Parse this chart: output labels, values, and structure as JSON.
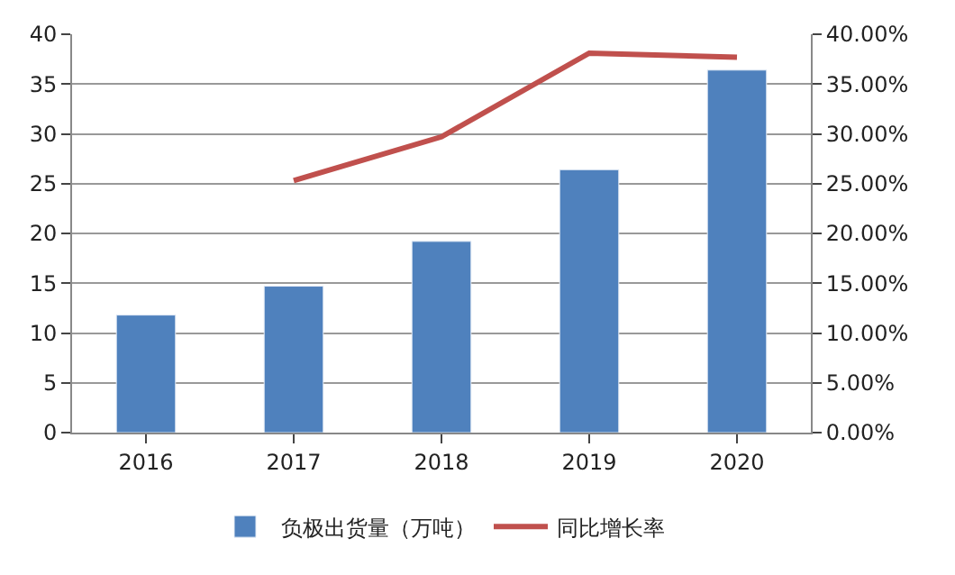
{
  "chart_data": {
    "type": "bar",
    "categories": [
      "2016",
      "2017",
      "2018",
      "2019",
      "2020"
    ],
    "series": [
      {
        "name": "负极出货量（万吨）",
        "color": "#4f81bd",
        "values": [
          11.8,
          14.7,
          19.2,
          26.4,
          36.4
        ]
      },
      {
        "name": "同比增长率",
        "type": "line",
        "axis": "y2",
        "color": "#c0504d",
        "values": [
          null,
          25.3,
          29.7,
          38.1,
          37.7
        ]
      }
    ],
    "ylim": [
      0,
      40
    ],
    "yticks": [
      0,
      5,
      10,
      15,
      20,
      25,
      30,
      35,
      40
    ],
    "y2lim": [
      0,
      40
    ],
    "y2ticks": [
      {
        "value": 0,
        "label": "0.00%"
      },
      {
        "value": 5,
        "label": "5.00%"
      },
      {
        "value": 10,
        "label": "10.00%"
      },
      {
        "value": 15,
        "label": "15.00%"
      },
      {
        "value": 20,
        "label": "20.00%"
      },
      {
        "value": 25,
        "label": "25.00%"
      },
      {
        "value": 30,
        "label": "30.00%"
      },
      {
        "value": 35,
        "label": "35.00%"
      },
      {
        "value": 40,
        "label": "40.00%"
      }
    ],
    "grid": "y",
    "legend": "bottom",
    "marker": "none",
    "line_style": "solid"
  }
}
